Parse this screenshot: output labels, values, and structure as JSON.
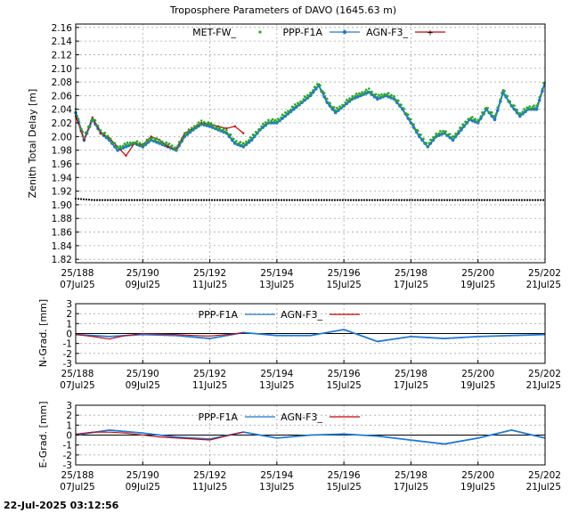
{
  "footer_timestamp": "22-Jul-2025 03:12:56",
  "colors": {
    "met": "#2aa32a",
    "ppp": "#1f78d8",
    "agn": "#cc0000",
    "black": "#000000",
    "grid": "#a8a8a8"
  },
  "x_ticks": [
    {
      "top": "25/188",
      "bottom": "07Jul25"
    },
    {
      "top": "25/190",
      "bottom": "09Jul25"
    },
    {
      "top": "25/192",
      "bottom": "11Jul25"
    },
    {
      "top": "25/194",
      "bottom": "13Jul25"
    },
    {
      "top": "25/196",
      "bottom": "15Jul25"
    },
    {
      "top": "25/198",
      "bottom": "17Jul25"
    },
    {
      "top": "25/200",
      "bottom": "19Jul25"
    },
    {
      "top": "25/202",
      "bottom": "21Jul25"
    }
  ],
  "chart_data": [
    {
      "type": "line",
      "title": "Troposphere Parameters of DAVO (1645.63 m)",
      "ylabel": "Zenith Total Delay [m]",
      "xlim": [
        188,
        202
      ],
      "ylim": [
        1.815,
        2.165
      ],
      "yticks": [
        "1.82",
        "1.84",
        "1.86",
        "1.88",
        "1.90",
        "1.92",
        "1.94",
        "1.96",
        "1.98",
        "2.00",
        "2.02",
        "2.04",
        "2.06",
        "2.08",
        "2.10",
        "2.12",
        "2.14",
        "2.16"
      ],
      "legend": [
        "MET-FW_",
        "PPP-F1A",
        "AGN-F3_"
      ],
      "series": [
        {
          "name": "PPP-F1A",
          "x": [
            188.0,
            188.25,
            188.5,
            188.75,
            189.0,
            189.25,
            189.5,
            189.75,
            190.0,
            190.25,
            190.5,
            190.75,
            191.0,
            191.25,
            191.5,
            191.75,
            192.0,
            192.25,
            192.5,
            192.75,
            193.0,
            193.25,
            193.5,
            193.75,
            194.0,
            194.25,
            194.5,
            194.75,
            195.0,
            195.25,
            195.5,
            195.75,
            196.0,
            196.25,
            196.5,
            196.75,
            197.0,
            197.25,
            197.5,
            197.75,
            198.0,
            198.25,
            198.5,
            198.75,
            199.0,
            199.25,
            199.5,
            199.75,
            200.0,
            200.25,
            200.5,
            200.75,
            201.0,
            201.25,
            201.5,
            201.75,
            202.0
          ],
          "values": [
            2.035,
            1.995,
            2.025,
            2.005,
            1.995,
            1.98,
            1.985,
            1.99,
            1.985,
            1.995,
            1.99,
            1.985,
            1.98,
            2.0,
            2.01,
            2.018,
            2.015,
            2.01,
            2.005,
            1.99,
            1.985,
            1.995,
            2.01,
            2.02,
            2.02,
            2.03,
            2.04,
            2.05,
            2.06,
            2.075,
            2.05,
            2.035,
            2.045,
            2.055,
            2.06,
            2.065,
            2.055,
            2.06,
            2.055,
            2.04,
            2.02,
            2.0,
            1.985,
            2.0,
            2.005,
            1.995,
            2.01,
            2.025,
            2.02,
            2.04,
            2.025,
            2.065,
            2.045,
            2.03,
            2.04,
            2.04,
            2.08
          ]
        },
        {
          "name": "AGN-F3_",
          "x": [
            188.0,
            188.25,
            188.5,
            188.75,
            189.0,
            189.25,
            189.5,
            189.75,
            190.0,
            190.25,
            190.5,
            190.75,
            191.0,
            191.25,
            191.5,
            191.75,
            192.0,
            192.25,
            192.5,
            192.75,
            193.0
          ],
          "values": [
            2.03,
            1.995,
            2.028,
            2.005,
            1.998,
            1.985,
            1.972,
            1.99,
            1.988,
            2.0,
            1.995,
            1.985,
            1.982,
            2.005,
            2.012,
            2.02,
            2.018,
            2.015,
            2.012,
            2.015,
            2.005
          ]
        },
        {
          "name": "MET-FW_",
          "x": [
            188.0,
            188.25,
            188.5,
            188.75,
            189.0,
            189.25,
            189.5,
            189.75,
            190.0,
            190.25,
            190.5,
            190.75,
            191.0,
            191.25,
            191.5,
            191.75,
            192.0,
            192.25,
            192.5,
            192.75,
            193.0,
            193.25,
            193.5,
            193.75,
            194.0,
            194.25,
            194.5,
            194.75,
            195.0,
            195.25,
            195.5,
            195.75,
            196.0,
            196.25,
            196.5,
            196.75,
            197.0,
            197.25,
            197.5,
            197.75,
            198.0,
            198.25,
            198.5,
            198.75,
            199.0,
            199.25,
            199.5,
            199.75,
            200.0,
            200.25,
            200.5,
            200.75,
            201.0,
            201.25,
            201.5,
            201.75,
            202.0
          ],
          "values": [
            2.038,
            1.998,
            2.028,
            2.008,
            1.998,
            1.983,
            1.988,
            1.992,
            1.988,
            1.998,
            1.993,
            1.988,
            1.983,
            2.003,
            2.013,
            2.021,
            2.018,
            2.013,
            2.008,
            1.993,
            1.988,
            1.998,
            2.013,
            2.023,
            2.023,
            2.033,
            2.043,
            2.053,
            2.063,
            2.078,
            2.053,
            2.038,
            2.048,
            2.058,
            2.063,
            2.068,
            2.058,
            2.063,
            2.058,
            2.043,
            2.023,
            2.003,
            1.988,
            2.003,
            2.008,
            1.998,
            2.013,
            2.028,
            2.023,
            2.043,
            2.028,
            2.068,
            2.048,
            2.033,
            2.043,
            2.043,
            2.083
          ]
        },
        {
          "name": "",
          "x": [
            188.0,
            188.5,
            202.0
          ],
          "values": [
            1.909,
            1.907,
            1.907
          ]
        }
      ]
    },
    {
      "type": "line",
      "ylabel": "N-Grad. [mm]",
      "xlim": [
        188,
        202
      ],
      "ylim": [
        -3,
        3
      ],
      "yticks": [
        "3",
        "2",
        "1",
        "0",
        "-1",
        "-2",
        "-3"
      ],
      "legend": [
        "PPP-F1A",
        "AGN-F3_"
      ],
      "series": [
        {
          "name": "PPP-F1A",
          "x": [
            188,
            189,
            190,
            191,
            192,
            193,
            194,
            195,
            196,
            197,
            198,
            199,
            200,
            201,
            202
          ],
          "values": [
            -0.1,
            -0.3,
            -0.1,
            -0.2,
            -0.5,
            0.1,
            -0.2,
            -0.2,
            0.4,
            -0.8,
            -0.3,
            -0.5,
            -0.3,
            -0.2,
            -0.1
          ]
        },
        {
          "name": "AGN-F3_",
          "x": [
            188,
            188.5,
            189,
            189.5,
            190,
            190.5,
            191,
            191.5,
            192,
            192.5,
            193
          ],
          "values": [
            -0.1,
            -0.3,
            -0.55,
            -0.2,
            0.0,
            -0.05,
            -0.1,
            -0.2,
            -0.25,
            -0.1,
            0.05
          ]
        }
      ]
    },
    {
      "type": "line",
      "ylabel": "E-Grad. [mm]",
      "xlim": [
        188,
        202
      ],
      "ylim": [
        -3,
        3
      ],
      "yticks": [
        "3",
        "2",
        "1",
        "0",
        "-1",
        "-2",
        "-3"
      ],
      "legend": [
        "PPP-F1A",
        "AGN-F3_"
      ],
      "series": [
        {
          "name": "PPP-F1A",
          "x": [
            188,
            189,
            190,
            191,
            192,
            193,
            194,
            195,
            196,
            197,
            198,
            199,
            200,
            201,
            202
          ],
          "values": [
            0.0,
            0.5,
            0.2,
            -0.2,
            -0.4,
            0.3,
            -0.3,
            0.0,
            0.1,
            -0.1,
            -0.5,
            -0.9,
            -0.3,
            0.5,
            -0.3
          ]
        },
        {
          "name": "AGN-F3_",
          "x": [
            188,
            188.5,
            189,
            189.5,
            190,
            190.5,
            191,
            191.5,
            192,
            192.5,
            193
          ],
          "values": [
            0.1,
            0.3,
            0.3,
            0.2,
            0.0,
            -0.2,
            -0.3,
            -0.4,
            -0.5,
            -0.1,
            0.3
          ]
        }
      ]
    }
  ]
}
